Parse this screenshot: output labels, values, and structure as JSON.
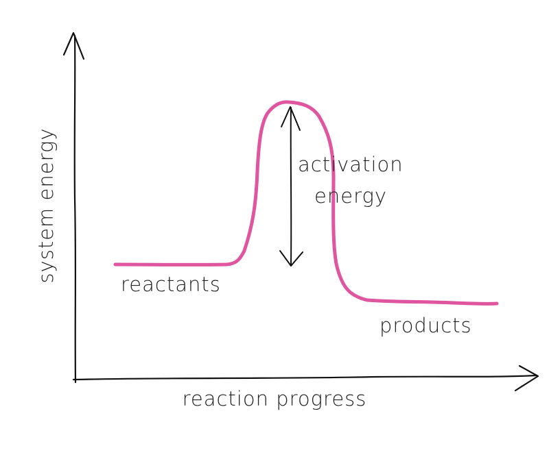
{
  "labels": {
    "y_axis": "system energy",
    "x_axis": "reaction progress",
    "reactants": "reactants",
    "products": "products",
    "activation_line1": "activation",
    "activation_line2": "energy"
  },
  "colors": {
    "curve": "#e0559f",
    "ink": "#111111"
  }
}
